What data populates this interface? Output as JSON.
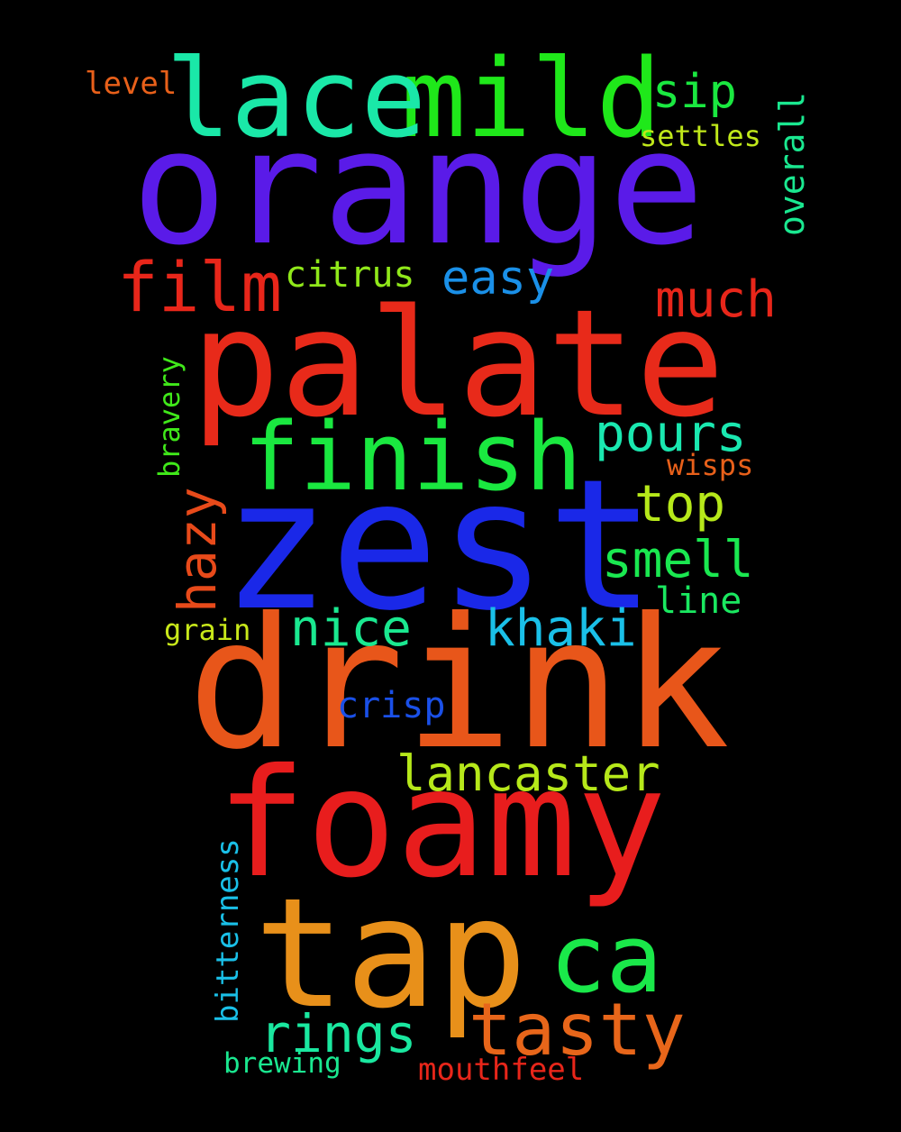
{
  "words": [
    {
      "text": "orange",
      "color": "#5a1be8"
    },
    {
      "text": "drink",
      "color": "#e8561a"
    },
    {
      "text": "zest",
      "color": "#1a28e8"
    },
    {
      "text": "palate",
      "color": "#e82a1a"
    },
    {
      "text": "foamy",
      "color": "#e81d1d"
    },
    {
      "text": "tap",
      "color": "#e8901a"
    },
    {
      "text": "mild",
      "color": "#1fe81a"
    },
    {
      "text": "lace",
      "color": "#1ae8a8"
    },
    {
      "text": "finish",
      "color": "#1ae840"
    },
    {
      "text": "ca",
      "color": "#1ae84a"
    },
    {
      "text": "tasty",
      "color": "#e8661a"
    },
    {
      "text": "film",
      "color": "#e8261a"
    },
    {
      "text": "much",
      "color": "#e8261a"
    },
    {
      "text": "pours",
      "color": "#1ae8b0"
    },
    {
      "text": "lancaster",
      "color": "#b6e81a"
    },
    {
      "text": "top",
      "color": "#b6e81a"
    },
    {
      "text": "smell",
      "color": "#1ae850"
    },
    {
      "text": "nice",
      "color": "#1ae890"
    },
    {
      "text": "khaki",
      "color": "#1ac0e8"
    },
    {
      "text": "hazy",
      "color": "#e84a1a"
    },
    {
      "text": "rings",
      "color": "#1ae8a0"
    },
    {
      "text": "easy",
      "color": "#1a90e8"
    },
    {
      "text": "citrus",
      "color": "#90e81a"
    },
    {
      "text": "sip",
      "color": "#1ae840"
    },
    {
      "text": "crisp",
      "color": "#1a50e8"
    },
    {
      "text": "overall",
      "color": "#1ae890"
    },
    {
      "text": "settles",
      "color": "#c0e81a"
    },
    {
      "text": "line",
      "color": "#1ae860"
    },
    {
      "text": "level",
      "color": "#e8601a"
    },
    {
      "text": "bitterness",
      "color": "#1ac0e8"
    },
    {
      "text": "bravery",
      "color": "#40e81a"
    },
    {
      "text": "wisps",
      "color": "#e8601a"
    },
    {
      "text": "grain",
      "color": "#c8e81a"
    },
    {
      "text": "mouthfeel",
      "color": "#e8261a"
    },
    {
      "text": "brewing",
      "color": "#1ae890"
    }
  ]
}
